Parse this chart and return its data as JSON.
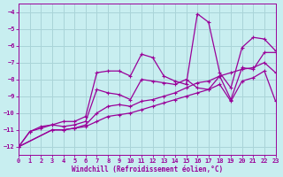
{
  "xlabel": "Windchill (Refroidissement éolien,°C)",
  "background_color": "#c8eef0",
  "grid_color": "#aad4d8",
  "line_color": "#990099",
  "xlim": [
    0,
    23
  ],
  "ylim": [
    -12.5,
    -3.5
  ],
  "yticks": [
    -12,
    -11,
    -10,
    -9,
    -8,
    -7,
    -6,
    -5,
    -4
  ],
  "xticks": [
    0,
    1,
    2,
    3,
    4,
    5,
    6,
    7,
    8,
    9,
    10,
    11,
    12,
    13,
    14,
    15,
    16,
    17,
    18,
    19,
    20,
    21,
    22,
    23
  ],
  "series": [
    [
      [
        0,
        -12.0
      ],
      [
        1,
        -11.1
      ],
      [
        2,
        -10.8
      ],
      [
        3,
        -10.7
      ],
      [
        4,
        -10.5
      ],
      [
        5,
        -10.5
      ],
      [
        6,
        -10.2
      ],
      [
        7,
        -7.6
      ],
      [
        8,
        -7.5
      ],
      [
        9,
        -7.5
      ],
      [
        10,
        -7.8
      ],
      [
        11,
        -6.5
      ],
      [
        12,
        -6.7
      ],
      [
        13,
        -7.8
      ],
      [
        14,
        -8.1
      ],
      [
        15,
        -8.3
      ],
      [
        16,
        -4.1
      ],
      [
        17,
        -4.6
      ],
      [
        18,
        -7.6
      ],
      [
        19,
        -8.5
      ],
      [
        20,
        -6.1
      ],
      [
        21,
        -5.5
      ],
      [
        22,
        -5.6
      ],
      [
        23,
        -6.3
      ]
    ],
    [
      [
        0,
        -12.0
      ],
      [
        1,
        -11.1
      ],
      [
        2,
        -10.9
      ],
      [
        3,
        -10.7
      ],
      [
        4,
        -10.8
      ],
      [
        5,
        -10.7
      ],
      [
        6,
        -10.5
      ],
      [
        7,
        -8.6
      ],
      [
        8,
        -8.8
      ],
      [
        9,
        -8.9
      ],
      [
        10,
        -9.2
      ],
      [
        11,
        -8.0
      ],
      [
        12,
        -8.1
      ],
      [
        13,
        -8.2
      ],
      [
        14,
        -8.3
      ],
      [
        15,
        -8.0
      ],
      [
        16,
        -8.5
      ],
      [
        17,
        -8.6
      ],
      [
        18,
        -7.8
      ],
      [
        19,
        -9.2
      ],
      [
        20,
        -7.3
      ],
      [
        21,
        -7.4
      ],
      [
        22,
        -6.4
      ],
      [
        23,
        -6.4
      ]
    ],
    [
      [
        0,
        -12.0
      ],
      [
        3,
        -11.0
      ],
      [
        4,
        -11.0
      ],
      [
        5,
        -10.9
      ],
      [
        6,
        -10.7
      ],
      [
        7,
        -10.0
      ],
      [
        8,
        -9.6
      ],
      [
        9,
        -9.5
      ],
      [
        10,
        -9.6
      ],
      [
        11,
        -9.3
      ],
      [
        12,
        -9.2
      ],
      [
        13,
        -9.0
      ],
      [
        14,
        -8.8
      ],
      [
        15,
        -8.5
      ],
      [
        16,
        -8.2
      ],
      [
        17,
        -8.1
      ],
      [
        18,
        -7.8
      ],
      [
        19,
        -7.6
      ],
      [
        20,
        -7.4
      ],
      [
        21,
        -7.3
      ],
      [
        22,
        -7.0
      ],
      [
        23,
        -7.6
      ]
    ],
    [
      [
        0,
        -12.0
      ],
      [
        3,
        -11.0
      ],
      [
        4,
        -11.0
      ],
      [
        5,
        -10.9
      ],
      [
        6,
        -10.8
      ],
      [
        7,
        -10.5
      ],
      [
        8,
        -10.2
      ],
      [
        9,
        -10.1
      ],
      [
        10,
        -10.0
      ],
      [
        11,
        -9.8
      ],
      [
        12,
        -9.6
      ],
      [
        13,
        -9.4
      ],
      [
        14,
        -9.2
      ],
      [
        15,
        -9.0
      ],
      [
        16,
        -8.8
      ],
      [
        17,
        -8.6
      ],
      [
        18,
        -8.3
      ],
      [
        19,
        -9.3
      ],
      [
        20,
        -8.1
      ],
      [
        21,
        -7.9
      ],
      [
        22,
        -7.5
      ],
      [
        23,
        -9.3
      ]
    ]
  ]
}
